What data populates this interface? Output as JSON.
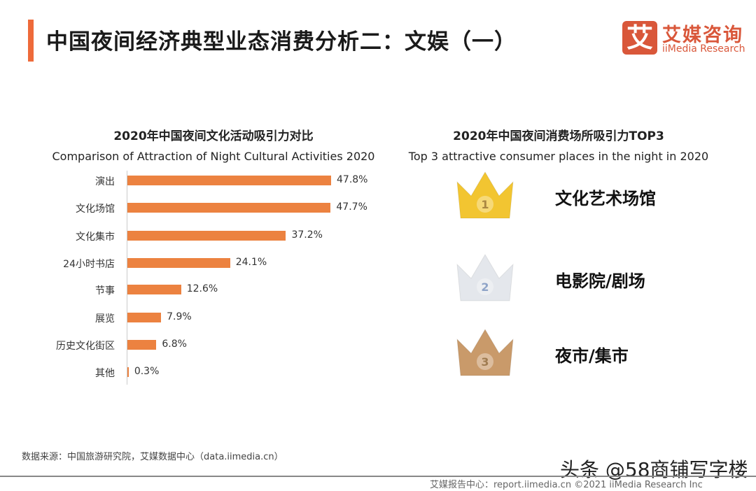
{
  "header": {
    "title": "中国夜间经济典型业态消费分析二：文娱（一）",
    "logo_mark": "艾",
    "logo_cn": "艾媒咨询",
    "logo_en": "iiMedia Research"
  },
  "chart_data": {
    "type": "bar",
    "orientation": "horizontal",
    "title": "2020年中国夜间文化活动吸引力对比",
    "subtitle": "Comparison of Attraction of Night Cultural Activities 2020",
    "categories": [
      "演出",
      "文化场馆",
      "文化集市",
      "24小时书店",
      "节事",
      "展览",
      "历史文化街区",
      "其他"
    ],
    "values": [
      47.8,
      47.7,
      37.2,
      24.1,
      12.6,
      7.9,
      6.8,
      0.3
    ],
    "labels": [
      "47.8%",
      "47.7%",
      "37.2%",
      "24.1%",
      "12.6%",
      "7.9%",
      "6.8%",
      "0.3%"
    ],
    "unit": "%",
    "color": "#ec8240",
    "xlim": [
      0,
      50
    ]
  },
  "top3": {
    "title": "2020年中国夜间消费场所吸引力TOP3",
    "subtitle": "Top 3 attractive consumer places in the night in 2020",
    "items": [
      {
        "rank": "1",
        "label": "文化艺术场馆",
        "color": "#f2c531"
      },
      {
        "rank": "2",
        "label": "电影院/剧场",
        "color": "#e4e7ec"
      },
      {
        "rank": "3",
        "label": "夜市/集市",
        "color": "#c99a6a"
      }
    ]
  },
  "footer": {
    "source": "数据来源：中国旅游研究院，艾媒数据中心（data.iimedia.cn）",
    "report": "艾媒报告中心：report.iimedia.cn ©2021 iiMedia Research Inc",
    "watermark": "头条 @58商铺写字楼"
  }
}
